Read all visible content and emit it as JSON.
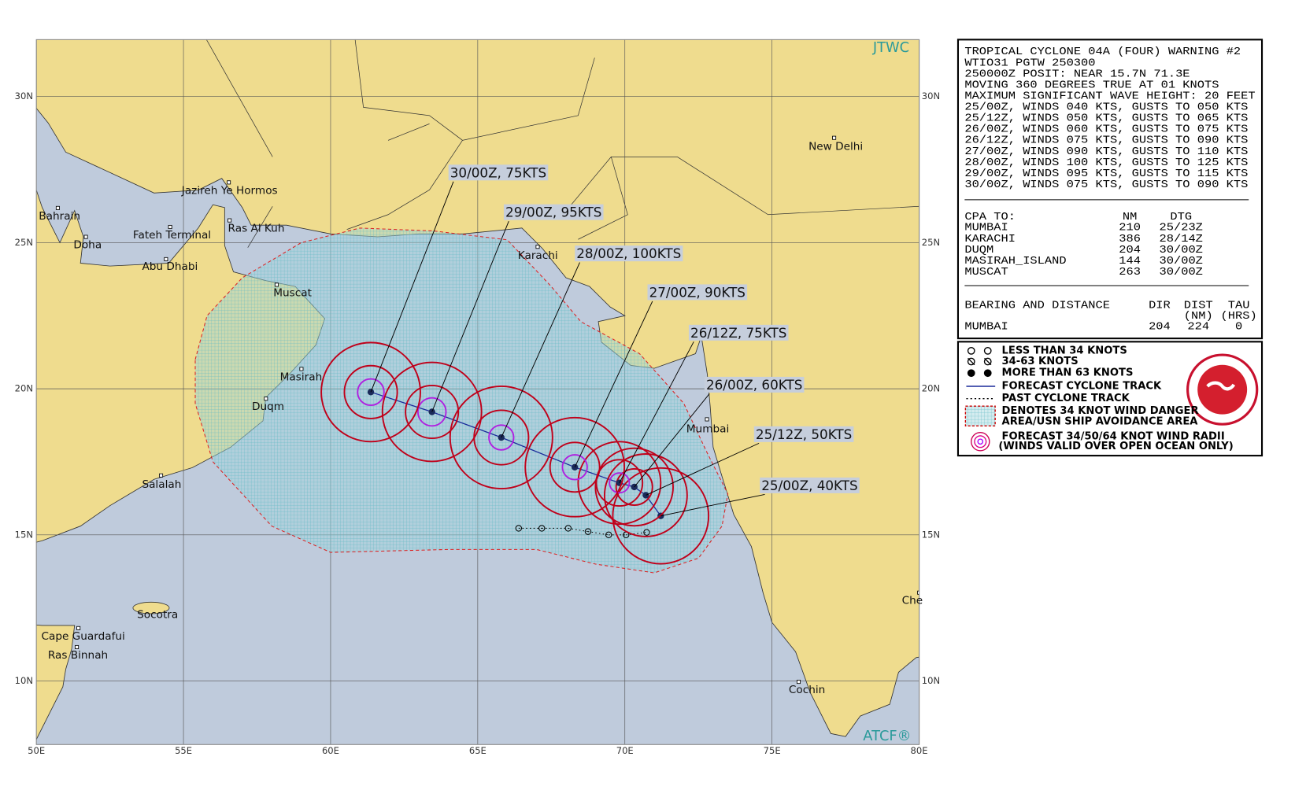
{
  "map": {
    "lat_labels": [
      "30N",
      "25N",
      "20N",
      "15N",
      "10N"
    ],
    "lon_labels": [
      "50E",
      "55E",
      "60E",
      "65E",
      "70E",
      "75E",
      "80E"
    ],
    "places": [
      "Jazireh Ye Hormos",
      "Bahrain",
      "Doha",
      "Fateh Terminal",
      "Ras Al Kuh",
      "Abu Dhabi",
      "Karachi",
      "Muscat",
      "Masirah",
      "Duqm",
      "Salalah",
      "Mumbai",
      "New Delhi",
      "Socotra",
      "Cape Guardafui",
      "Ras Binnah",
      "Cochin",
      "Che"
    ],
    "forecast_labels": [
      "25/00Z, 40KTS",
      "25/12Z, 50KTS",
      "26/00Z, 60KTS",
      "26/12Z, 75KTS",
      "27/00Z, 90KTS",
      "28/00Z, 100KTS",
      "29/00Z, 95KTS",
      "30/00Z, 75KTS"
    ],
    "credits": [
      "JTWC",
      "ATCF®"
    ]
  },
  "warning": {
    "lines": [
      "TROPICAL CYCLONE 04A (FOUR) WARNING #2",
      "WTIO31 PGTW 250300",
      "250000Z POSIT: NEAR 15.7N 71.3E",
      "MOVING 360 DEGREES TRUE AT 01 KNOTS",
      "MAXIMUM SIGNIFICANT WAVE HEIGHT: 20 FEET",
      "25/00Z, WINDS 040 KTS, GUSTS TO 050 KTS",
      "25/12Z, WINDS 050 KTS, GUSTS TO 065 KTS",
      "26/00Z, WINDS 060 KTS, GUSTS TO 075 KTS",
      "26/12Z, WINDS 075 KTS, GUSTS TO 090 KTS",
      "27/00Z, WINDS 090 KTS, GUSTS TO 110 KTS",
      "28/00Z, WINDS 100 KTS, GUSTS TO 125 KTS",
      "29/00Z, WINDS 095 KTS, GUSTS TO 115 KTS",
      "30/00Z, WINDS 075 KTS, GUSTS TO 090 KTS"
    ],
    "cpa": {
      "heading": "CPA TO:",
      "columns": [
        "NM",
        "DTG"
      ],
      "rows": [
        [
          "MUMBAI",
          "210",
          "25/23Z"
        ],
        [
          "KARACHI",
          "386",
          "28/14Z"
        ],
        [
          "DUQM",
          "204",
          "30/00Z"
        ],
        [
          "MASIRAH_ISLAND",
          "144",
          "30/00Z"
        ],
        [
          "MUSCAT",
          "263",
          "30/00Z"
        ]
      ]
    },
    "bearing": {
      "heading": "BEARING AND DISTANCE",
      "columns": [
        "DIR",
        "DIST",
        "TAU"
      ],
      "units": [
        "(NM)",
        "(HRS)"
      ],
      "rows": [
        [
          "MUMBAI",
          "204",
          "224",
          "0"
        ]
      ]
    }
  },
  "legend": {
    "items": [
      "LESS THAN 34 KNOTS",
      "34-63 KNOTS",
      "MORE THAN 63 KNOTS",
      "FORECAST CYCLONE TRACK",
      "PAST CYCLONE TRACK",
      "DENOTES 34 KNOT WIND DANGER",
      "AREA/USN SHIP AVOIDANCE AREA",
      "FORECAST 34/50/64 KNOT WIND RADII",
      "(WINDS VALID OVER OPEN OCEAN ONLY)"
    ]
  }
}
